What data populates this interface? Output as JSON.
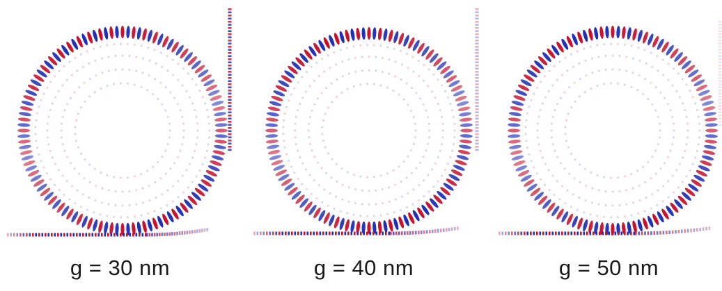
{
  "figure": {
    "panels": [
      {
        "caption": "g = 30 nm",
        "gap_nm": 30
      },
      {
        "caption": "g = 40 nm",
        "gap_nm": 40
      },
      {
        "caption": "g = 50 nm",
        "gap_nm": 50
      }
    ],
    "colors": {
      "positive_field": "#c8102e",
      "negative_field": "#1f2fb8",
      "background": "#ffffff"
    }
  }
}
